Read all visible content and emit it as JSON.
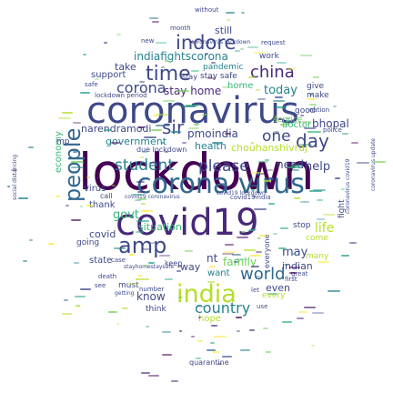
{
  "palette": {
    "dark_purple": "#440154",
    "indigo": "#482878",
    "blue": "#3e4989",
    "slate_blue": "#31688e",
    "teal": "#26828e",
    "green_teal": "#1f9e89",
    "green": "#35b779",
    "light_green": "#6ece58",
    "yellow_green": "#b5de2b",
    "yellow": "#fde725"
  },
  "words": [
    {
      "text": "lockdown",
      "color": "#440154"
    },
    {
      "text": "coronavirus",
      "color": "#3e4989"
    },
    {
      "text": "covid19",
      "color": "#482878"
    },
    {
      "text": "corona virus",
      "color": "#31688e"
    },
    {
      "text": "india",
      "color": "#b5de2b"
    },
    {
      "text": "people",
      "color": "#31688e"
    },
    {
      "text": "indore",
      "color": "#3e4989"
    },
    {
      "text": "time",
      "color": "#3e4989"
    },
    {
      "text": "china",
      "color": "#482878"
    },
    {
      "text": "corona",
      "color": "#3e4989"
    },
    {
      "text": "sir",
      "color": "#3e4989"
    },
    {
      "text": "student",
      "color": "#26828e"
    },
    {
      "text": "please",
      "color": "#3e4989"
    },
    {
      "text": "amp",
      "color": "#3e4989"
    },
    {
      "text": "day",
      "color": "#3e4989"
    },
    {
      "text": "one",
      "color": "#3e4989"
    },
    {
      "text": "world",
      "color": "#31688e"
    },
    {
      "text": "country",
      "color": "#26828e"
    },
    {
      "text": "indiafightscorona",
      "color": "#26828e"
    },
    {
      "text": "govt",
      "color": "#35b779"
    },
    {
      "text": "bhopal",
      "color": "#3e4989"
    },
    {
      "text": "stay home",
      "color": "#482878"
    },
    {
      "text": "today",
      "color": "#26828e"
    },
    {
      "text": "pmoindia",
      "color": "#3e4989"
    },
    {
      "text": "narendramodi",
      "color": "#3e4989"
    },
    {
      "text": "government",
      "color": "#26828e"
    },
    {
      "text": "situation",
      "color": "#35b779"
    },
    {
      "text": "need",
      "color": "#3e4989"
    },
    {
      "text": "help",
      "color": "#3e4989"
    },
    {
      "text": "life",
      "color": "#b5de2b"
    },
    {
      "text": "may",
      "color": "#3e4989"
    },
    {
      "text": "family",
      "color": "#6ece58"
    },
    {
      "text": "health",
      "color": "#26828e"
    },
    {
      "text": "chouhanshivraj",
      "color": "#b5de2b"
    },
    {
      "text": "covid",
      "color": "#3e4989"
    },
    {
      "text": "indian",
      "color": "#3e4989"
    },
    {
      "text": "even",
      "color": "#3e4989"
    },
    {
      "text": "know",
      "color": "#3e4989"
    },
    {
      "text": "way",
      "color": "#3e4989"
    },
    {
      "text": "still",
      "color": "#3e4989"
    },
    {
      "text": "take",
      "color": "#3e4989"
    },
    {
      "text": "pandemic",
      "color": "#26828e"
    },
    {
      "text": "support",
      "color": "#3e4989"
    },
    {
      "text": "home",
      "color": "#35b779"
    },
    {
      "text": "economy",
      "color": "#35b779"
    },
    {
      "text": "virus",
      "color": "#3e4989"
    },
    {
      "text": "thank",
      "color": "#3e4989"
    },
    {
      "text": "doctor",
      "color": "#35b779"
    },
    {
      "text": "state",
      "color": "#3e4989"
    },
    {
      "text": "want",
      "color": "#26828e"
    },
    {
      "text": "hope",
      "color": "#b5de2b"
    },
    {
      "text": "quarantine",
      "color": "#3e4989"
    },
    {
      "text": "work",
      "color": "#3e4989"
    },
    {
      "text": "stay safe",
      "color": "#3e4989"
    },
    {
      "text": "give",
      "color": "#3e4989"
    },
    {
      "text": "make",
      "color": "#3e4989"
    },
    {
      "text": "going",
      "color": "#3e4989"
    },
    {
      "text": "must",
      "color": "#3e4989"
    },
    {
      "text": "think",
      "color": "#3e4989"
    },
    {
      "text": "every",
      "color": "#b5de2b"
    },
    {
      "text": "stop",
      "color": "#3e4989"
    },
    {
      "text": "good",
      "color": "#3e4989"
    },
    {
      "text": "fight",
      "color": "#3e4989"
    },
    {
      "text": "everyone",
      "color": "#3e4989"
    },
    {
      "text": "come",
      "color": "#b5de2b"
    },
    {
      "text": "many",
      "color": "#b5de2b"
    },
    {
      "text": "mp",
      "color": "#3e4989"
    },
    {
      "text": "call",
      "color": "#3e4989"
    },
    {
      "text": "keep",
      "color": "#3e4989"
    },
    {
      "text": "nt",
      "color": "#3e4989"
    },
    {
      "text": "due lockdown",
      "color": "#3e4989"
    },
    {
      "text": "lockdown period",
      "color": "#3e4989"
    },
    {
      "text": "month",
      "color": "#3e4989"
    },
    {
      "text": "without",
      "color": "#3e4989"
    },
    {
      "text": "request",
      "color": "#3e4989"
    },
    {
      "text": "safe",
      "color": "#3e4989"
    },
    {
      "text": "new",
      "color": "#3e4989"
    },
    {
      "text": "first",
      "color": "#3e4989"
    },
    {
      "text": "service",
      "color": "#6ece58"
    },
    {
      "text": "nation",
      "color": "#3e4989"
    },
    {
      "text": "police",
      "color": "#3e4989"
    },
    {
      "text": "number",
      "color": "#3e4989"
    },
    {
      "text": "great",
      "color": "#3e4989"
    },
    {
      "text": "see",
      "color": "#3e4989"
    },
    {
      "text": "let",
      "color": "#3e4989"
    },
    {
      "text": "social distancing",
      "color": "#3e4989"
    },
    {
      "text": "coronavirus update",
      "color": "#3e4989"
    },
    {
      "text": "stayhomestaysafe",
      "color": "#3e4989"
    },
    {
      "text": "covid19india",
      "color": "#3e4989"
    },
    {
      "text": "covid19 coronavirus",
      "color": "#3e4989"
    },
    {
      "text": "stay",
      "color": "#3e4989"
    },
    {
      "text": "covid19 lockdown",
      "color": "#3e4989"
    },
    {
      "text": "getting",
      "color": "#3e4989"
    },
    {
      "text": "coronavirus covid19",
      "color": "#3e4989"
    },
    {
      "text": "coronavirus lockdown",
      "color": "#3e4989"
    },
    {
      "text": "case",
      "color": "#3e4989"
    },
    {
      "text": "use",
      "color": "#3e4989"
    },
    {
      "text": "death",
      "color": "#3e4989"
    }
  ]
}
